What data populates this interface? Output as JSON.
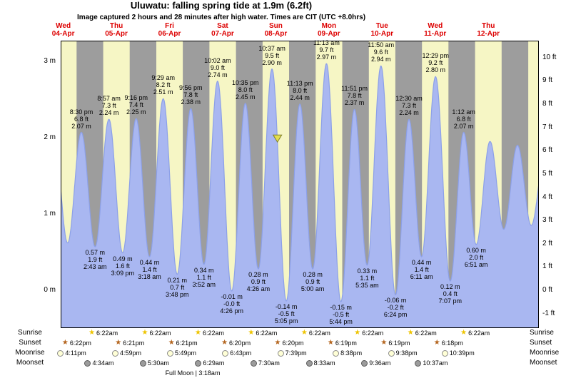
{
  "page": {
    "title": "Uluwatu: falling  spring tide at 1.9m (6.2ft)",
    "subtitle": "Image captured 2 hours and 28 minutes after high water. Times are CIT (UTC +8.0hrs)"
  },
  "colors": {
    "day_band": "#f6f6c5",
    "night_band": "#9d9d9d",
    "tide_fill": "#a9b7f1",
    "tide_line": "#8ca0e8",
    "date_red": "#dd0000",
    "marker_fill": "#e4de4e",
    "marker_stroke": "#7c7c2c",
    "border": "#000000",
    "sunrise_star": "#eec400",
    "sunset_star": "#b4651e",
    "moonrise_fill": "#ffffd6",
    "moonrise_border": "#8a8a8a",
    "moonset_fill": "#9c9c9c",
    "moonset_border": "#5a5a5a"
  },
  "days": [
    {
      "weekday": "Wed",
      "date": "04-Apr"
    },
    {
      "weekday": "Thu",
      "date": "05-Apr"
    },
    {
      "weekday": "Fri",
      "date": "06-Apr"
    },
    {
      "weekday": "Sat",
      "date": "07-Apr"
    },
    {
      "weekday": "Sun",
      "date": "08-Apr"
    },
    {
      "weekday": "Mon",
      "date": "09-Apr"
    },
    {
      "weekday": "Tue",
      "date": "10-Apr"
    },
    {
      "weekday": "Wed",
      "date": "11-Apr"
    },
    {
      "weekday": "Thu",
      "date": "12-Apr"
    }
  ],
  "y_axis": {
    "left": [
      "3 m",
      "2 m",
      "1 m",
      "0 m"
    ],
    "right": [
      "10 ft",
      "9 ft",
      "8 ft",
      "7 ft",
      "6 ft",
      "5 ft",
      "4 ft",
      "3 ft",
      "2 ft",
      "1 ft",
      "0 ft",
      "-1 ft"
    ]
  },
  "chart_data": {
    "type": "area",
    "title": "Uluwatu: falling  spring tide at 1.9m (6.2ft)",
    "ylabel_left": "m",
    "ylabel_right": "ft",
    "ylim_m": [
      -0.5,
      3.25
    ],
    "current_level_m": 1.9,
    "captured_after_high_water": "2 hours and 28 minutes",
    "tides": [
      {
        "type": "high",
        "day": 0,
        "time": "8:30 pm",
        "feet": "6.8 ft",
        "meters": "2.07 m"
      },
      {
        "type": "low",
        "day": 1,
        "time": "2:43 am",
        "feet": "1.9 ft",
        "meters": "0.57 m"
      },
      {
        "type": "high",
        "day": 1,
        "time": "8:57 am",
        "feet": "7.3 ft",
        "meters": "2.24 m"
      },
      {
        "type": "low",
        "day": 1,
        "time": "3:09 pm",
        "feet": "1.6 ft",
        "meters": "0.49 m"
      },
      {
        "type": "high",
        "day": 1,
        "time": "9:16 pm",
        "feet": "7.4 ft",
        "meters": "2.25 m"
      },
      {
        "type": "low",
        "day": 2,
        "time": "3:18 am",
        "feet": "1.4 ft",
        "meters": "0.44 m"
      },
      {
        "type": "high",
        "day": 2,
        "time": "9:29 am",
        "feet": "8.2 ft",
        "meters": "2.51 m"
      },
      {
        "type": "low",
        "day": 2,
        "time": "3:48 pm",
        "feet": "0.7 ft",
        "meters": "0.21 m"
      },
      {
        "type": "high",
        "day": 2,
        "time": "9:56 pm",
        "feet": "7.8 ft",
        "meters": "2.38 m"
      },
      {
        "type": "low",
        "day": 3,
        "time": "3:52 am",
        "feet": "1.1 ft",
        "meters": "0.34 m"
      },
      {
        "type": "high",
        "day": 3,
        "time": "10:02 am",
        "feet": "9.0 ft",
        "meters": "2.74 m"
      },
      {
        "type": "low",
        "day": 3,
        "time": "4:26 pm",
        "feet": "-0.0 ft",
        "meters": "-0.01 m"
      },
      {
        "type": "high",
        "day": 3,
        "time": "10:35 pm",
        "feet": "8.0 ft",
        "meters": "2.45 m"
      },
      {
        "type": "low",
        "day": 4,
        "time": "4:26 am",
        "feet": "0.9 ft",
        "meters": "0.28 m"
      },
      {
        "type": "high",
        "day": 4,
        "time": "10:37 am",
        "feet": "9.5 ft",
        "meters": "2.90 m"
      },
      {
        "type": "low",
        "day": 4,
        "time": "5:05 pm",
        "feet": "-0.5 ft",
        "meters": "-0.14 m"
      },
      {
        "type": "high",
        "day": 4,
        "time": "11:13 pm",
        "feet": "8.0 ft",
        "meters": "2.44 m"
      },
      {
        "type": "low",
        "day": 5,
        "time": "5:00 am",
        "feet": "0.9 ft",
        "meters": "0.28 m"
      },
      {
        "type": "high",
        "day": 5,
        "time": "11:13 am",
        "feet": "9.7 ft",
        "meters": "2.97 m"
      },
      {
        "type": "low",
        "day": 5,
        "time": "5:44 pm",
        "feet": "-0.5 ft",
        "meters": "-0.15 m"
      },
      {
        "type": "high",
        "day": 5,
        "time": "11:51 pm",
        "feet": "7.8 ft",
        "meters": "2.37 m"
      },
      {
        "type": "low",
        "day": 6,
        "time": "5:35 am",
        "feet": "1.1 ft",
        "meters": "0.33 m"
      },
      {
        "type": "high",
        "day": 6,
        "time": "11:50 am",
        "feet": "9.6 ft",
        "meters": "2.94 m"
      },
      {
        "type": "low",
        "day": 6,
        "time": "6:24 pm",
        "feet": "-0.2 ft",
        "meters": "-0.06 m"
      },
      {
        "type": "high",
        "day": 7,
        "time": "12:30 am",
        "feet": "7.3 ft",
        "meters": "2.24 m"
      },
      {
        "type": "low",
        "day": 7,
        "time": "6:11 am",
        "feet": "1.4 ft",
        "meters": "0.44 m"
      },
      {
        "type": "high",
        "day": 7,
        "time": "12:29 pm",
        "feet": "9.2 ft",
        "meters": "2.80 m"
      },
      {
        "type": "low",
        "day": 7,
        "time": "7:07 pm",
        "feet": "0.4 ft",
        "meters": "0.12 m"
      },
      {
        "type": "high",
        "day": 8,
        "time": "1:12 am",
        "feet": "6.8 ft",
        "meters": "2.07 m"
      },
      {
        "type": "low",
        "day": 8,
        "time": "6:51 am",
        "feet": "2.0 ft",
        "meters": "0.60 m"
      }
    ]
  },
  "astro": {
    "rows": [
      {
        "id": "sunrise",
        "label": "Sunrise",
        "icon": "sunrise-star",
        "events": [
          {
            "day": 1,
            "time": "6:22am"
          },
          {
            "day": 2,
            "time": "6:22am"
          },
          {
            "day": 3,
            "time": "6:22am"
          },
          {
            "day": 4,
            "time": "6:22am"
          },
          {
            "day": 5,
            "time": "6:22am"
          },
          {
            "day": 6,
            "time": "6:22am"
          },
          {
            "day": 7,
            "time": "6:22am"
          },
          {
            "day": 8,
            "time": "6:22am"
          }
        ]
      },
      {
        "id": "sunset",
        "label": "Sunset",
        "icon": "sunset-star",
        "events": [
          {
            "day": 0,
            "time": "6:22pm"
          },
          {
            "day": 1,
            "time": "6:21pm"
          },
          {
            "day": 2,
            "time": "6:21pm"
          },
          {
            "day": 3,
            "time": "6:20pm"
          },
          {
            "day": 4,
            "time": "6:20pm"
          },
          {
            "day": 5,
            "time": "6:19pm"
          },
          {
            "day": 6,
            "time": "6:19pm"
          },
          {
            "day": 7,
            "time": "6:18pm"
          }
        ]
      },
      {
        "id": "moonrise",
        "label": "Moonrise",
        "icon": "moon-light",
        "events": [
          {
            "day": 0,
            "time": "4:11pm"
          },
          {
            "day": 1,
            "time": "4:59pm"
          },
          {
            "day": 2,
            "time": "5:49pm"
          },
          {
            "day": 3,
            "time": "6:43pm"
          },
          {
            "day": 4,
            "time": "7:39pm"
          },
          {
            "day": 5,
            "time": "8:38pm"
          },
          {
            "day": 6,
            "time": "9:38pm"
          },
          {
            "day": 7,
            "time": "10:39pm"
          }
        ]
      },
      {
        "id": "moonset",
        "label": "Moonset",
        "icon": "moon-dark",
        "events": [
          {
            "day": 1,
            "time": "4:34am"
          },
          {
            "day": 2,
            "time": "5:30am"
          },
          {
            "day": 3,
            "time": "6:29am"
          },
          {
            "day": 4,
            "time": "7:30am"
          },
          {
            "day": 5,
            "time": "8:33am"
          },
          {
            "day": 6,
            "time": "9:36am"
          },
          {
            "day": 7,
            "time": "10:37am"
          }
        ]
      }
    ],
    "full_moon": "Full Moon | 3:18am"
  }
}
